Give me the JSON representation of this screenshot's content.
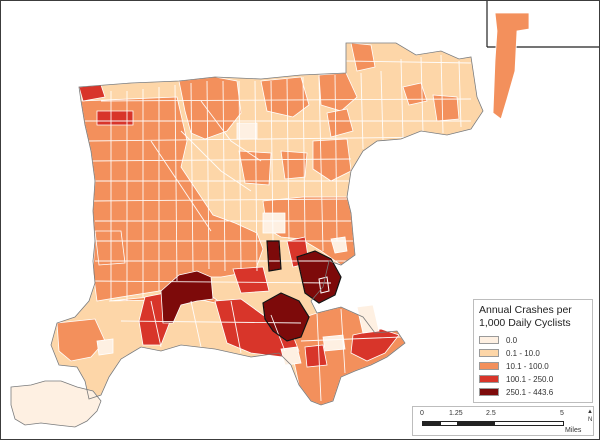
{
  "map": {
    "colors": {
      "c0": "#fef0e2",
      "c1": "#fdd6a8",
      "c2": "#f3905c",
      "c3": "#d8352a",
      "c4": "#7d0a0a",
      "tract_line": "#ffffff",
      "boundary": "#111111"
    }
  },
  "legend": {
    "title_line1": "Annual Crashes per",
    "title_line2": "1,000 Daily Cyclists",
    "classes": [
      {
        "label": "0.0",
        "color": "#fef0e2"
      },
      {
        "label": "0.1 - 10.0",
        "color": "#fdd6a8"
      },
      {
        "label": "10.1 - 100.0",
        "color": "#f3905c"
      },
      {
        "label": "100.1 - 250.0",
        "color": "#d8352a"
      },
      {
        "label": "250.1 - 443.6",
        "color": "#7d0a0a"
      }
    ]
  },
  "scale": {
    "ticks": [
      "0",
      "1.25",
      "2.5",
      "5"
    ],
    "unit": "Miles",
    "north": "N"
  }
}
